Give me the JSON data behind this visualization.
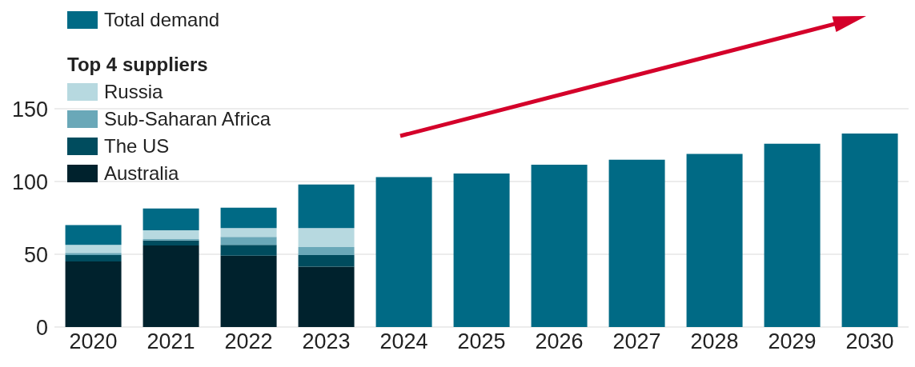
{
  "chart_data": {
    "type": "bar",
    "stacked": true,
    "legend_title": "Top 4 suppliers",
    "categories": [
      "2020",
      "2021",
      "2022",
      "2023",
      "2024",
      "2025",
      "2026",
      "2027",
      "2028",
      "2029",
      "2030"
    ],
    "series": [
      {
        "name": "Australia",
        "color": "#00222d",
        "values": [
          45,
          56,
          49,
          41.5,
          null,
          null,
          null,
          null,
          null,
          null,
          null
        ]
      },
      {
        "name": "The US",
        "color": "#004c5e",
        "values": [
          4.5,
          3.5,
          7.5,
          8,
          null,
          null,
          null,
          null,
          null,
          null,
          null
        ]
      },
      {
        "name": "Sub-Saharan Africa",
        "color": "#6aa8b8",
        "values": [
          1.5,
          1,
          5.5,
          5.5,
          null,
          null,
          null,
          null,
          null,
          null,
          null
        ]
      },
      {
        "name": "Russia",
        "color": "#b7d9e0",
        "values": [
          5.5,
          6,
          6,
          13,
          null,
          null,
          null,
          null,
          null,
          null,
          null
        ]
      },
      {
        "name": "Total demand",
        "color": "#006a85",
        "values": [
          13.5,
          15,
          14,
          30,
          103,
          105.5,
          111.5,
          115,
          119,
          126,
          133
        ]
      }
    ],
    "ylim": [
      0,
      150
    ],
    "yticks": [
      0,
      50,
      100,
      150
    ],
    "grid": "y",
    "legend": "top left"
  }
}
